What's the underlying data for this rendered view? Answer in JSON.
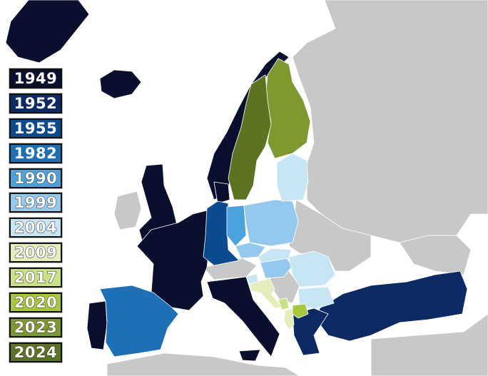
{
  "legend": [
    {
      "year": "1949",
      "color": "#0b0f2e"
    },
    {
      "year": "1952",
      "color": "#0c2a63"
    },
    {
      "year": "1955",
      "color": "#0a4a8f"
    },
    {
      "year": "1982",
      "color": "#1d6fb6"
    },
    {
      "year": "1990",
      "color": "#4aa3dd"
    },
    {
      "year": "1999",
      "color": "#93c8ef"
    },
    {
      "year": "2004",
      "color": "#c5e6f2"
    },
    {
      "year": "2009",
      "color": "#e3eebb"
    },
    {
      "year": "2017",
      "color": "#c9e282"
    },
    {
      "year": "2020",
      "color": "#a8c73c"
    },
    {
      "year": "2023",
      "color": "#7e9a2e"
    },
    {
      "year": "2024",
      "color": "#5c7420"
    }
  ],
  "colors": {
    "non_member": "#c8c8c8",
    "sea": "#ffffff"
  }
}
